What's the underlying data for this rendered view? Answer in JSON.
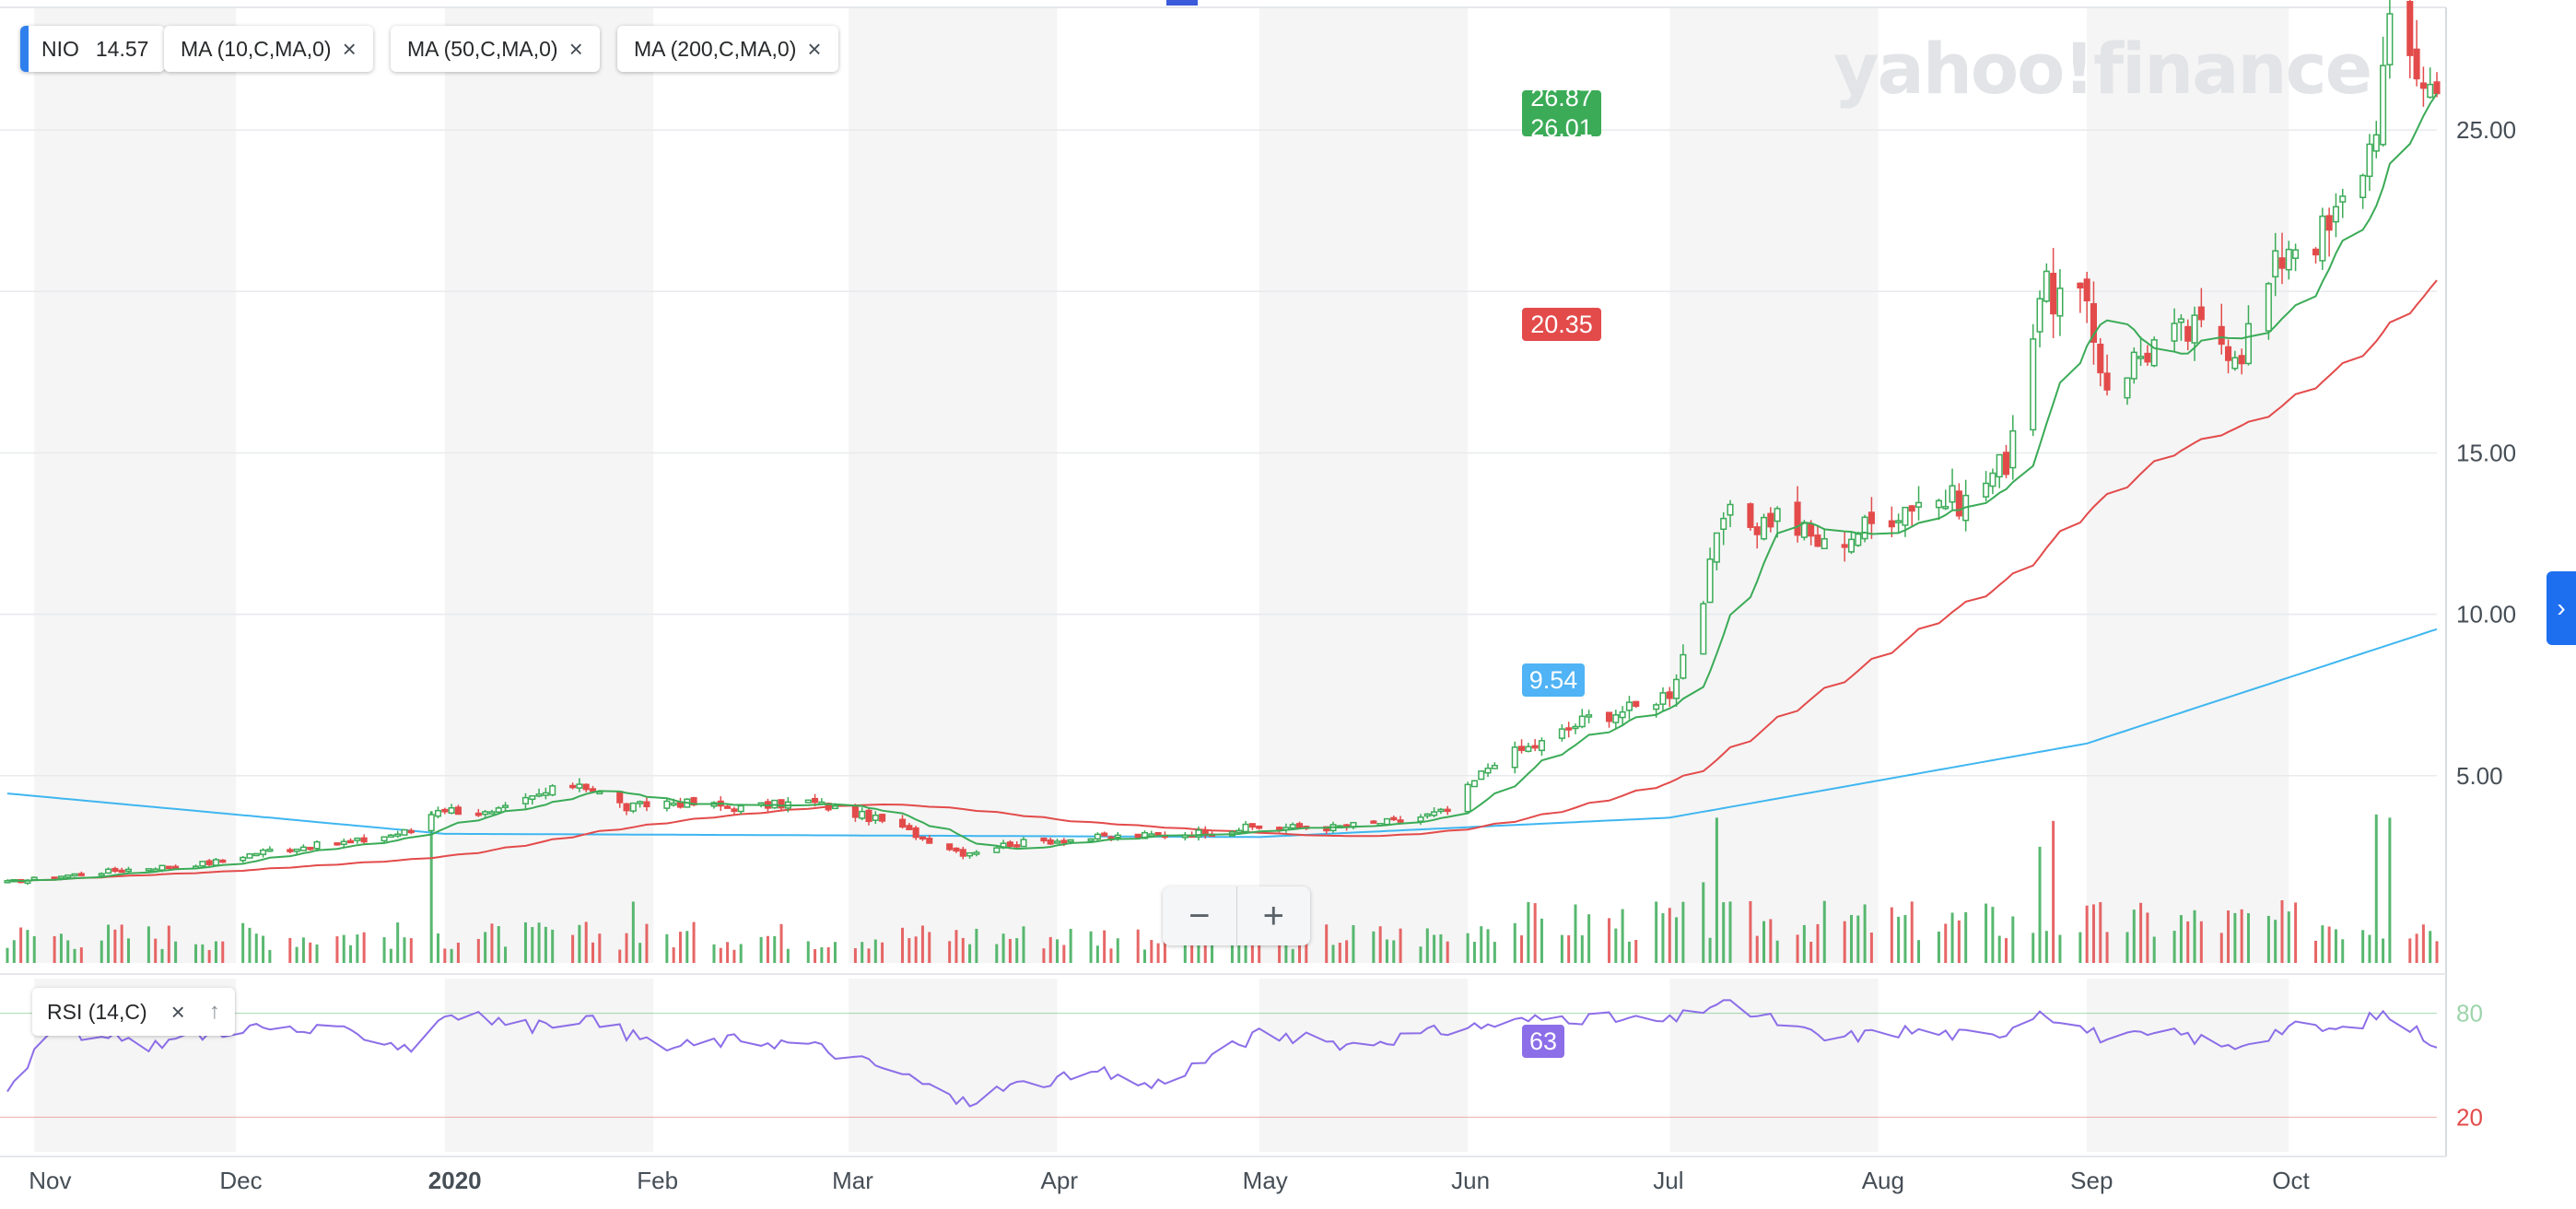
{
  "watermark": "yahoo!finance",
  "chips": {
    "symbol": "NIO",
    "price": "14.57",
    "ma10": "MA (10,C,MA,0)",
    "ma50": "MA (50,C,MA,0)",
    "ma200": "MA (200,C,MA,0)",
    "rsi": "RSI (14,C)",
    "close_icon": "×",
    "up_icon": "↑"
  },
  "zoom": {
    "minus": "−",
    "plus": "+"
  },
  "side_button_icon": "›",
  "badges": {
    "last_close": "26.87",
    "ma10": "26.01",
    "ma50": "20.35",
    "ma200": "9.54",
    "rsi": "63"
  },
  "colors": {
    "up": "#3bab57",
    "down": "#e34b4b",
    "ma10": "#3bab57",
    "ma50": "#e34b4b",
    "ma200": "#3fb6f0",
    "rsi": "#8c6ee8",
    "badge_green": "#3bab57",
    "badge_red": "#e34b4b",
    "badge_blue": "#4fb3f5",
    "badge_purple": "#8c6ee8"
  },
  "chart_data": {
    "type": "candlestick",
    "title": "",
    "xlabel": "",
    "ylabel": "",
    "x_range": [
      "2019-10-28",
      "2020-10-23"
    ],
    "ylim": [
      -0.8,
      28.8
    ],
    "y_ticks": [
      "5.00",
      "10.00",
      "15.00",
      "25.00"
    ],
    "x_ticks": [
      "Nov",
      "Dec",
      "2020",
      "Feb",
      "Mar",
      "Apr",
      "May",
      "Jun",
      "Jul",
      "Aug",
      "Sep",
      "Oct"
    ],
    "x_tick_dates": [
      "2019-11-01",
      "2019-12-01",
      "2020-01-01",
      "2020-02-01",
      "2020-03-01",
      "2020-04-01",
      "2020-05-01",
      "2020-06-01",
      "2020-07-01",
      "2020-08-01",
      "2020-09-01",
      "2020-10-01"
    ],
    "grid": true,
    "close_anchors": [
      [
        "2019-10-28",
        1.7
      ],
      [
        "2019-11-05",
        1.9
      ],
      [
        "2019-11-15",
        2.1
      ],
      [
        "2019-11-27",
        2.3
      ],
      [
        "2019-12-06",
        2.7
      ],
      [
        "2019-12-20",
        3.0
      ],
      [
        "2019-12-27",
        3.3
      ],
      [
        "2019-12-31",
        4.0
      ],
      [
        "2020-01-08",
        3.8
      ],
      [
        "2020-01-15",
        4.4
      ],
      [
        "2020-01-21",
        4.8
      ],
      [
        "2020-01-28",
        4.0
      ],
      [
        "2020-02-03",
        4.2
      ],
      [
        "2020-02-14",
        4.0
      ],
      [
        "2020-02-24",
        4.2
      ],
      [
        "2020-03-06",
        3.6
      ],
      [
        "2020-03-18",
        2.6
      ],
      [
        "2020-03-25",
        2.9
      ],
      [
        "2020-04-08",
        3.1
      ],
      [
        "2020-04-20",
        3.2
      ],
      [
        "2020-04-30",
        3.4
      ],
      [
        "2020-05-12",
        3.4
      ],
      [
        "2020-05-22",
        3.6
      ],
      [
        "2020-05-29",
        3.9
      ],
      [
        "2020-06-05",
        5.5
      ],
      [
        "2020-06-12",
        6.0
      ],
      [
        "2020-06-19",
        6.8
      ],
      [
        "2020-06-26",
        7.1
      ],
      [
        "2020-07-01",
        7.6
      ],
      [
        "2020-07-06",
        10.5
      ],
      [
        "2020-07-09",
        13.0
      ],
      [
        "2020-07-14",
        12.8
      ],
      [
        "2020-07-17",
        13.1
      ],
      [
        "2020-07-24",
        12.1
      ],
      [
        "2020-07-31",
        12.8
      ],
      [
        "2020-08-07",
        13.6
      ],
      [
        "2020-08-14",
        13.5
      ],
      [
        "2020-08-20",
        14.8
      ],
      [
        "2020-08-25",
        20.0
      ],
      [
        "2020-08-31",
        19.7
      ],
      [
        "2020-09-04",
        17.2
      ],
      [
        "2020-09-11",
        18.4
      ],
      [
        "2020-09-18",
        18.8
      ],
      [
        "2020-09-24",
        18.3
      ],
      [
        "2020-10-01",
        21.6
      ],
      [
        "2020-10-07",
        21.8
      ],
      [
        "2020-10-13",
        24.5
      ],
      [
        "2020-10-16",
        27.8
      ],
      [
        "2020-10-20",
        27.0
      ],
      [
        "2020-10-23",
        26.1
      ]
    ],
    "volume_spikes": [
      [
        "2019-12-30",
        4.7
      ],
      [
        "2020-01-29",
        1.9
      ],
      [
        "2020-07-06",
        2.5
      ],
      [
        "2020-07-08",
        4.5
      ],
      [
        "2020-08-25",
        3.6
      ],
      [
        "2020-08-27",
        4.4
      ],
      [
        "2020-10-14",
        4.6
      ],
      [
        "2020-10-16",
        4.5
      ]
    ],
    "series": [
      {
        "name": "NIO",
        "last_close": 26.87
      },
      {
        "name": "MA (10,C,MA,0)",
        "last": 26.01
      },
      {
        "name": "MA (50,C,MA,0)",
        "last": 20.35
      },
      {
        "name": "MA (200,C,MA,0)",
        "anchors": [
          [
            "2019-10-28",
            4.45
          ],
          [
            "2020-01-01",
            3.2
          ],
          [
            "2020-05-01",
            3.1
          ],
          [
            "2020-07-01",
            3.7
          ],
          [
            "2020-09-01",
            6.0
          ],
          [
            "2020-10-23",
            9.54
          ]
        ]
      }
    ],
    "rsi": {
      "name": "RSI (14,C)",
      "ylim": [
        0,
        100
      ],
      "levels": [
        "20",
        "80"
      ],
      "last": 63,
      "anchors": [
        [
          "2019-10-28",
          38
        ],
        [
          "2019-11-04",
          70
        ],
        [
          "2019-11-18",
          62
        ],
        [
          "2019-12-02",
          72
        ],
        [
          "2019-12-20",
          68
        ],
        [
          "2019-12-27",
          60
        ],
        [
          "2020-01-01",
          80
        ],
        [
          "2020-01-15",
          72
        ],
        [
          "2020-01-21",
          78
        ],
        [
          "2020-02-03",
          60
        ],
        [
          "2020-02-14",
          65
        ],
        [
          "2020-02-24",
          62
        ],
        [
          "2020-03-09",
          45
        ],
        [
          "2020-03-18",
          28
        ],
        [
          "2020-03-25",
          38
        ],
        [
          "2020-04-08",
          45
        ],
        [
          "2020-04-15",
          38
        ],
        [
          "2020-05-01",
          68
        ],
        [
          "2020-05-15",
          62
        ],
        [
          "2020-06-01",
          72
        ],
        [
          "2020-06-15",
          78
        ],
        [
          "2020-07-01",
          75
        ],
        [
          "2020-07-08",
          86
        ],
        [
          "2020-07-15",
          78
        ],
        [
          "2020-07-24",
          65
        ],
        [
          "2020-08-05",
          70
        ],
        [
          "2020-08-18",
          66
        ],
        [
          "2020-08-25",
          82
        ],
        [
          "2020-09-04",
          65
        ],
        [
          "2020-09-15",
          68
        ],
        [
          "2020-09-22",
          60
        ],
        [
          "2020-10-01",
          72
        ],
        [
          "2020-10-09",
          70
        ],
        [
          "2020-10-15",
          80
        ],
        [
          "2020-10-23",
          63
        ]
      ]
    }
  }
}
